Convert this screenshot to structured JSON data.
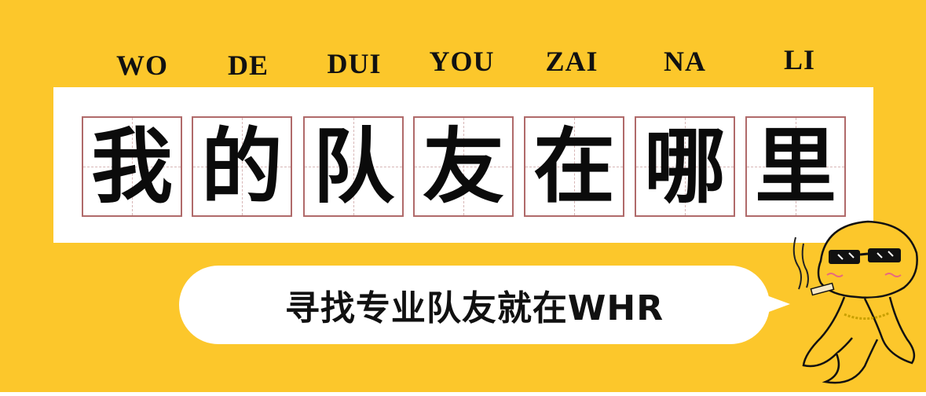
{
  "pinyin": [
    "WO",
    "DE",
    "DUI",
    "YOU",
    "ZAI",
    "NA",
    "LI"
  ],
  "title_chars": [
    "我",
    "的",
    "队",
    "友",
    "在",
    "哪",
    "里"
  ],
  "slogan": "寻找专业队友就在WHR",
  "colors": {
    "background": "#fcc72b",
    "panel": "#ffffff",
    "cell_border": "#b06a6a",
    "text": "#111111"
  }
}
